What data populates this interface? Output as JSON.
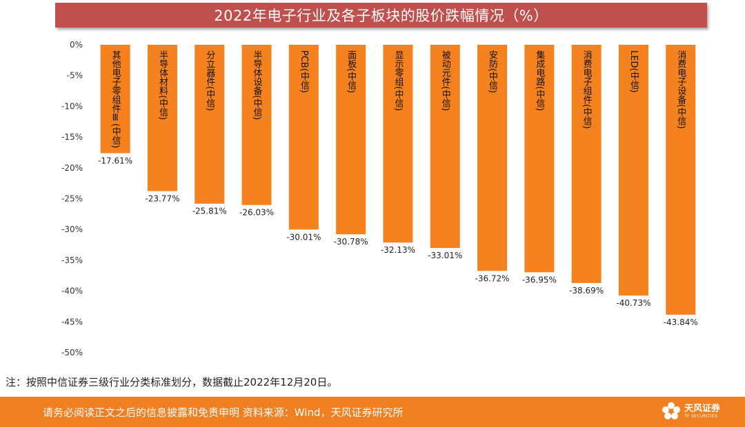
{
  "title": "2022年电子行业及各子板块的股价跌幅情况（%）",
  "note": "注：按照中信证券三级行业分类标准划分，数据截止2022年12月20日。",
  "footer": {
    "disclaimer": "请务必阅读正文之后的信息披露和免责申明   资料来源：Wind，天风证券研究所",
    "logo_cn": "天风证券",
    "logo_en": "TF SECURITIES",
    "logo_icon": "tf-flower-logo-icon"
  },
  "colors": {
    "bar": "#f5821f",
    "title_bg": "#c0504d",
    "footer_bg": "#f07f21"
  },
  "chart_data": {
    "type": "bar",
    "title": "2022年电子行业及各子板块的股价跌幅情况（%）",
    "categories": [
      "其他电子零组件Ⅲ(中信)",
      "半导体材料(中信)",
      "分立器件(中信)",
      "半导体设备(中信)",
      "PCB(中信)",
      "面板(中信)",
      "显示零组(中信)",
      "被动元件(中信)",
      "安防(中信)",
      "集成电路(中信)",
      "消费电子组件(中信)",
      "LED(中信)",
      "消费电子设备(中信)"
    ],
    "values": [
      -17.61,
      -23.77,
      -25.81,
      -26.03,
      -30.01,
      -30.78,
      -32.13,
      -33.01,
      -36.72,
      -36.95,
      -38.69,
      -40.73,
      -43.84
    ],
    "data_labels": [
      "-17.61%",
      "-23.77%",
      "-25.81%",
      "-26.03%",
      "-30.01%",
      "-30.78%",
      "-32.13%",
      "-33.01%",
      "-36.72%",
      "-36.95%",
      "-38.69%",
      "-40.73%",
      "-43.84%"
    ],
    "ylim": [
      -50,
      0
    ],
    "yticks": [
      0,
      -5,
      -10,
      -15,
      -20,
      -25,
      -30,
      -35,
      -40,
      -45,
      -50
    ],
    "ytick_labels": [
      "0%",
      "-5%",
      "-10%",
      "-15%",
      "-20%",
      "-25%",
      "-30%",
      "-35%",
      "-40%",
      "-45%",
      "-50%"
    ],
    "xlabel": "",
    "ylabel": "",
    "grid": false,
    "legend": "none"
  }
}
